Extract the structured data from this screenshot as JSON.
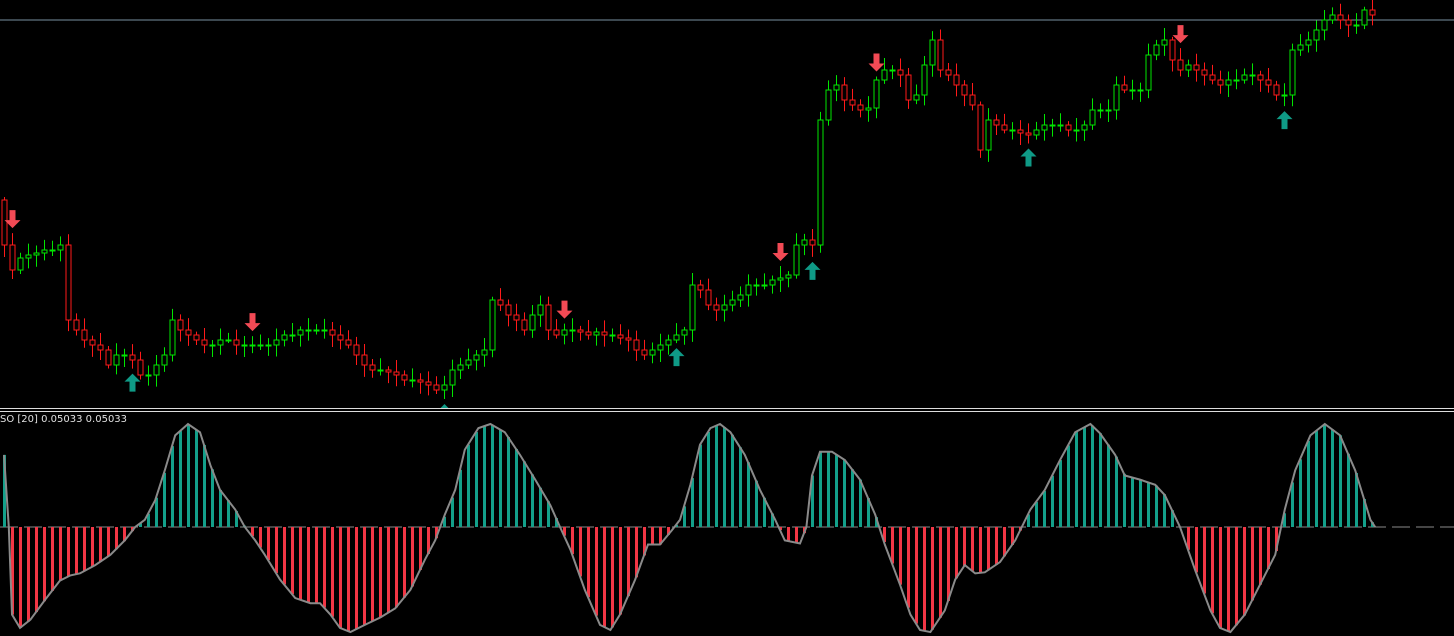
{
  "colors": {
    "background": "#000000",
    "bull": "#00e600",
    "bear": "#ff1a1a",
    "up_arrow": "#0f9a86",
    "down_arrow": "#f24a55",
    "level_line": "#7890a0",
    "osc_pos": "#13a08a",
    "osc_neg": "#f23645",
    "osc_line": "#8a8a8a",
    "zero_line": "#8a8a8a"
  },
  "indicator_label": {
    "name": "SO [20]",
    "value1": "0.05033",
    "value2": "0.05033"
  },
  "chart_data": [
    {
      "type": "candlestick",
      "title": "",
      "first_open": 210,
      "closes": [
        165,
        140,
        152,
        155,
        157,
        160,
        160,
        165,
        90,
        80,
        70,
        65,
        60,
        45,
        55,
        55,
        50,
        35,
        35,
        45,
        55,
        90,
        80,
        75,
        70,
        65,
        65,
        70,
        70,
        65,
        65,
        65,
        65,
        65,
        70,
        75,
        75,
        80,
        80,
        80,
        80,
        75,
        70,
        65,
        55,
        45,
        40,
        40,
        38,
        35,
        30,
        30,
        28,
        25,
        20,
        25,
        40,
        45,
        50,
        55,
        60,
        110,
        105,
        95,
        90,
        80,
        95,
        105,
        80,
        75,
        80,
        80,
        78,
        75,
        78,
        75,
        75,
        72,
        70,
        60,
        55,
        60,
        65,
        70,
        75,
        80,
        125,
        120,
        105,
        100,
        105,
        110,
        115,
        125,
        125,
        125,
        130,
        132,
        135,
        165,
        170,
        165,
        290,
        320,
        325,
        310,
        305,
        300,
        302,
        330,
        340,
        340,
        335,
        310,
        315,
        345,
        370,
        340,
        335,
        325,
        315,
        305,
        260,
        290,
        285,
        280,
        280,
        277,
        275,
        280,
        285,
        285,
        285,
        280,
        280,
        285,
        300,
        300,
        300,
        325,
        320,
        320,
        320,
        355,
        365,
        370,
        350,
        340,
        345,
        340,
        335,
        330,
        325,
        330,
        330,
        335,
        335,
        330,
        325,
        315,
        315,
        360,
        365,
        370,
        380,
        390,
        395,
        390,
        385,
        385,
        400,
        395
      ],
      "level_line": 390,
      "signals": {
        "down": [
          1,
          31,
          70,
          97,
          109,
          147
        ],
        "up": [
          16,
          55,
          84,
          101,
          128,
          160
        ]
      }
    },
    {
      "type": "bar",
      "title": "SO [20]",
      "ylim": [
        -1.05,
        1.05
      ],
      "samples": [
        [
          0,
          0.7
        ],
        [
          0.6,
          0
        ],
        [
          1,
          -0.85
        ],
        [
          2,
          -0.98
        ],
        [
          3.3,
          -0.9
        ],
        [
          5.1,
          -0.71
        ],
        [
          7,
          -0.52
        ],
        [
          8.3,
          -0.47
        ],
        [
          9.5,
          -0.45
        ],
        [
          11.4,
          -0.37
        ],
        [
          13.3,
          -0.27
        ],
        [
          15.1,
          -0.13
        ],
        [
          16.4,
          0
        ],
        [
          17.6,
          0.07
        ],
        [
          18.9,
          0.26
        ],
        [
          20.1,
          0.55
        ],
        [
          21.4,
          0.89
        ],
        [
          23,
          1.0
        ],
        [
          24.5,
          0.92
        ],
        [
          25.8,
          0.6
        ],
        [
          27,
          0.36
        ],
        [
          28.9,
          0.17
        ],
        [
          30.1,
          0
        ],
        [
          31.4,
          -0.13
        ],
        [
          32.6,
          -0.27
        ],
        [
          34.5,
          -0.51
        ],
        [
          36.4,
          -0.69
        ],
        [
          38.3,
          -0.74
        ],
        [
          39.5,
          -0.74
        ],
        [
          40.8,
          -0.85
        ],
        [
          42,
          -0.98
        ],
        [
          43.3,
          -1.02
        ],
        [
          45.1,
          -0.95
        ],
        [
          47,
          -0.88
        ],
        [
          48.9,
          -0.79
        ],
        [
          50.8,
          -0.61
        ],
        [
          52.6,
          -0.32
        ],
        [
          53.9,
          -0.13
        ],
        [
          55.1,
          0.12
        ],
        [
          56.4,
          0.36
        ],
        [
          57.6,
          0.75
        ],
        [
          59.3,
          0.96
        ],
        [
          60.8,
          1.0
        ],
        [
          62.6,
          0.92
        ],
        [
          64.5,
          0.7
        ],
        [
          66.4,
          0.46
        ],
        [
          68.3,
          0.21
        ],
        [
          69.5,
          0
        ],
        [
          70.8,
          -0.22
        ],
        [
          72.6,
          -0.61
        ],
        [
          74.5,
          -0.95
        ],
        [
          75.8,
          -1.0
        ],
        [
          77,
          -0.85
        ],
        [
          78.9,
          -0.51
        ],
        [
          80.5,
          -0.17
        ],
        [
          82,
          -0.17
        ],
        [
          83.5,
          -0.03
        ],
        [
          84.5,
          0.07
        ],
        [
          85.8,
          0.41
        ],
        [
          87,
          0.8
        ],
        [
          88.3,
          0.96
        ],
        [
          89.5,
          1.0
        ],
        [
          90.8,
          0.92
        ],
        [
          92.6,
          0.7
        ],
        [
          94.5,
          0.36
        ],
        [
          96.4,
          0.07
        ],
        [
          97.6,
          -0.13
        ],
        [
          99.5,
          -0.16
        ],
        [
          100.3,
          0
        ],
        [
          101,
          0.5
        ],
        [
          102,
          0.73
        ],
        [
          103.5,
          0.73
        ],
        [
          105.1,
          0.65
        ],
        [
          107,
          0.46
        ],
        [
          108.9,
          0.12
        ],
        [
          110.1,
          -0.17
        ],
        [
          112,
          -0.56
        ],
        [
          113.3,
          -0.85
        ],
        [
          114.5,
          -1.0
        ],
        [
          115.8,
          -1.02
        ],
        [
          117.6,
          -0.81
        ],
        [
          118.9,
          -0.51
        ],
        [
          120.1,
          -0.37
        ],
        [
          121.4,
          -0.45
        ],
        [
          122.6,
          -0.44
        ],
        [
          124.5,
          -0.34
        ],
        [
          126.4,
          -0.13
        ],
        [
          128.3,
          0.17
        ],
        [
          130.1,
          0.36
        ],
        [
          132,
          0.65
        ],
        [
          133.9,
          0.92
        ],
        [
          135.8,
          1.0
        ],
        [
          137,
          0.91
        ],
        [
          138.9,
          0.7
        ],
        [
          140.1,
          0.5
        ],
        [
          142,
          0.46
        ],
        [
          143.9,
          0.41
        ],
        [
          145.1,
          0.31
        ],
        [
          147,
          0
        ],
        [
          148.9,
          -0.42
        ],
        [
          150.8,
          -0.81
        ],
        [
          152,
          -0.98
        ],
        [
          153.3,
          -1.02
        ],
        [
          155.1,
          -0.85
        ],
        [
          157,
          -0.56
        ],
        [
          158.9,
          -0.27
        ],
        [
          160.1,
          0.17
        ],
        [
          161.4,
          0.55
        ],
        [
          163.3,
          0.89
        ],
        [
          165.1,
          1.0
        ],
        [
          167,
          0.89
        ],
        [
          168.9,
          0.55
        ],
        [
          170.8,
          0.07
        ],
        [
          171.4,
          0
        ]
      ]
    }
  ]
}
